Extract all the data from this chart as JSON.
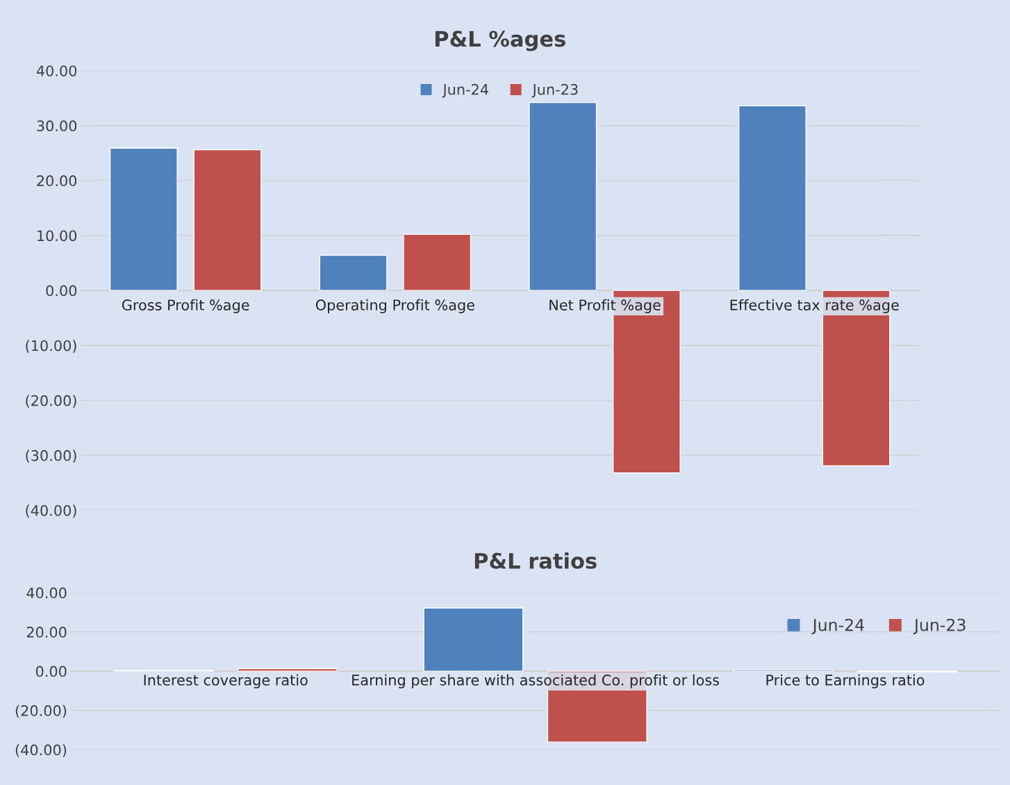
{
  "chart_data": [
    {
      "type": "bar",
      "title": "P&L %ages",
      "categories": [
        "Gross Profit %age",
        "Operating Profit %age",
        "Net Profit %age",
        "Effective tax rate %age"
      ],
      "series": [
        {
          "name": "Jun-24",
          "color": "#4f81bd",
          "values": [
            25.9,
            6.4,
            34.2,
            33.6
          ]
        },
        {
          "name": "Jun-23",
          "color": "#c0504d",
          "values": [
            25.6,
            10.2,
            -33.2,
            -31.9
          ]
        }
      ],
      "ylim": [
        -40,
        40
      ],
      "yticks": [
        {
          "value": -40,
          "label": "(40.00)"
        },
        {
          "value": -30,
          "label": "(30.00)"
        },
        {
          "value": -20,
          "label": "(20.00)"
        },
        {
          "value": -10,
          "label": "(10.00)"
        },
        {
          "value": 0,
          "label": "0.00"
        },
        {
          "value": 10,
          "label": "10.00"
        },
        {
          "value": 20,
          "label": "20.00"
        },
        {
          "value": 30,
          "label": "30.00"
        },
        {
          "value": 40,
          "label": "40.00"
        }
      ],
      "grid": "y",
      "legend": "top"
    },
    {
      "type": "bar",
      "title": "P&L ratios",
      "categories": [
        "Interest coverage ratio",
        "Earning per share with associated Co. profit or loss",
        "Price to Earnings ratio"
      ],
      "series": [
        {
          "name": "Jun-24",
          "color": "#4f81bd",
          "values": [
            0.3,
            32.2,
            0.7
          ]
        },
        {
          "name": "Jun-23",
          "color": "#c0504d",
          "values": [
            1.3,
            -36.1,
            -0.4
          ]
        }
      ],
      "ylim": [
        -40,
        40
      ],
      "yticks": [
        {
          "value": -40,
          "label": "(40.00)"
        },
        {
          "value": -20,
          "label": "(20.00)"
        },
        {
          "value": 0,
          "label": "0.00"
        },
        {
          "value": 20,
          "label": "20.00"
        },
        {
          "value": 40,
          "label": "40.00"
        }
      ],
      "grid": "y",
      "legend": "top right"
    }
  ]
}
